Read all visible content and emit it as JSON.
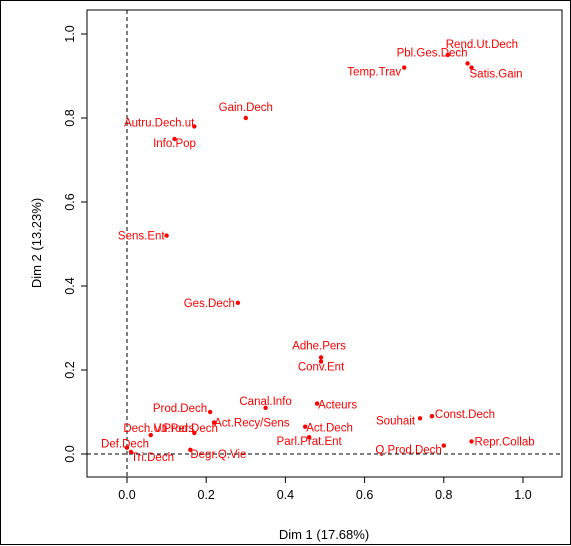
{
  "colors": {
    "points": "#ff0000",
    "axes": "#000000",
    "reference_lines": "#000000"
  },
  "chart_data": {
    "type": "scatter",
    "title": "",
    "xlabel": "Dim 1 (17.68%)",
    "ylabel": "Dim 2 (13.23%)",
    "xlim": [
      -0.1,
      1.1
    ],
    "ylim": [
      -0.05,
      1.05
    ],
    "xticks": [
      0.0,
      0.2,
      0.4,
      0.6,
      0.8,
      1.0
    ],
    "yticks": [
      0.0,
      0.2,
      0.4,
      0.6,
      0.8,
      1.0
    ],
    "xtick_labels": [
      "0.0",
      "0.2",
      "0.4",
      "0.6",
      "0.8",
      "1.0"
    ],
    "ytick_labels": [
      "0.0",
      "0.2",
      "0.4",
      "0.6",
      "0.8",
      "1.0"
    ],
    "reference_lines": {
      "x": 0,
      "y": 0,
      "style": "dashed"
    },
    "grid": false,
    "points": [
      {
        "label": "Rend.Ut.Dech",
        "x": 0.81,
        "y": 0.95
      },
      {
        "label": "Pbl.Ges.Dech",
        "x": 0.86,
        "y": 0.93
      },
      {
        "label": "Satis.Gain",
        "x": 0.87,
        "y": 0.92
      },
      {
        "label": "Temp.Trav",
        "x": 0.7,
        "y": 0.92
      },
      {
        "label": "Gain.Dech",
        "x": 0.3,
        "y": 0.8
      },
      {
        "label": "Autru.Dech.ut",
        "x": 0.17,
        "y": 0.78
      },
      {
        "label": "Info.Pop",
        "x": 0.12,
        "y": 0.75
      },
      {
        "label": "Sens.Ent",
        "x": 0.1,
        "y": 0.52
      },
      {
        "label": "Ges.Dech",
        "x": 0.28,
        "y": 0.36
      },
      {
        "label": "Adhe.Pers",
        "x": 0.49,
        "y": 0.23
      },
      {
        "label": "Conv.Ent",
        "x": 0.49,
        "y": 0.22
      },
      {
        "label": "Canal.Info",
        "x": 0.35,
        "y": 0.11
      },
      {
        "label": "Acteurs",
        "x": 0.48,
        "y": 0.12
      },
      {
        "label": "Prod.Dech",
        "x": 0.21,
        "y": 0.1
      },
      {
        "label": "Act.Recy/Sens",
        "x": 0.22,
        "y": 0.075
      },
      {
        "label": "Dech.Uti.Pers",
        "x": 0.17,
        "y": 0.05
      },
      {
        "label": "V.Prod.Dech",
        "x": 0.06,
        "y": 0.045
      },
      {
        "label": "Act.Dech",
        "x": 0.45,
        "y": 0.065
      },
      {
        "label": "Parl.Prat.Ent",
        "x": 0.46,
        "y": 0.04
      },
      {
        "label": "Souhait",
        "x": 0.74,
        "y": 0.085
      },
      {
        "label": "Const.Dech",
        "x": 0.77,
        "y": 0.09
      },
      {
        "label": "Repr.Collab",
        "x": 0.87,
        "y": 0.03
      },
      {
        "label": "Q.Prod.Dech",
        "x": 0.8,
        "y": 0.02
      },
      {
        "label": "Def.Dech",
        "x": 0.0,
        "y": 0.015
      },
      {
        "label": "Tri.Dech",
        "x": 0.01,
        "y": 0.005
      },
      {
        "label": "Degr.Q.Vie",
        "x": 0.16,
        "y": 0.01
      }
    ]
  }
}
